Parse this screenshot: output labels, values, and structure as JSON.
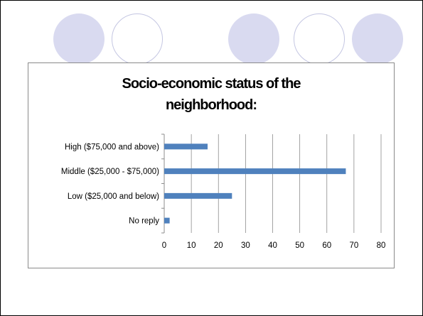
{
  "slide": {
    "circles": [
      {
        "style": "filled"
      },
      {
        "style": "outline"
      },
      {
        "style": "filled"
      },
      {
        "style": "outline"
      },
      {
        "style": "filled"
      }
    ]
  },
  "colors": {
    "bar": "#4f81bd",
    "grid": "#8c8c8c",
    "circle_fill": "#d9daf0",
    "circle_outline": "#c4c6e2"
  },
  "chart_data": {
    "type": "bar",
    "orientation": "horizontal",
    "title_lines": [
      "Socio-economic status of the",
      "neighborhood:"
    ],
    "categories": [
      "High ($75,000 and above)",
      "Middle ($25,000 - $75,000)",
      "Low ($25,000 and below)",
      "No reply"
    ],
    "values": [
      16,
      67,
      25,
      2
    ],
    "xlim": [
      0,
      80
    ],
    "xticks": [
      0,
      10,
      20,
      30,
      40,
      50,
      60,
      70,
      80
    ],
    "grid": true,
    "legend": false
  }
}
